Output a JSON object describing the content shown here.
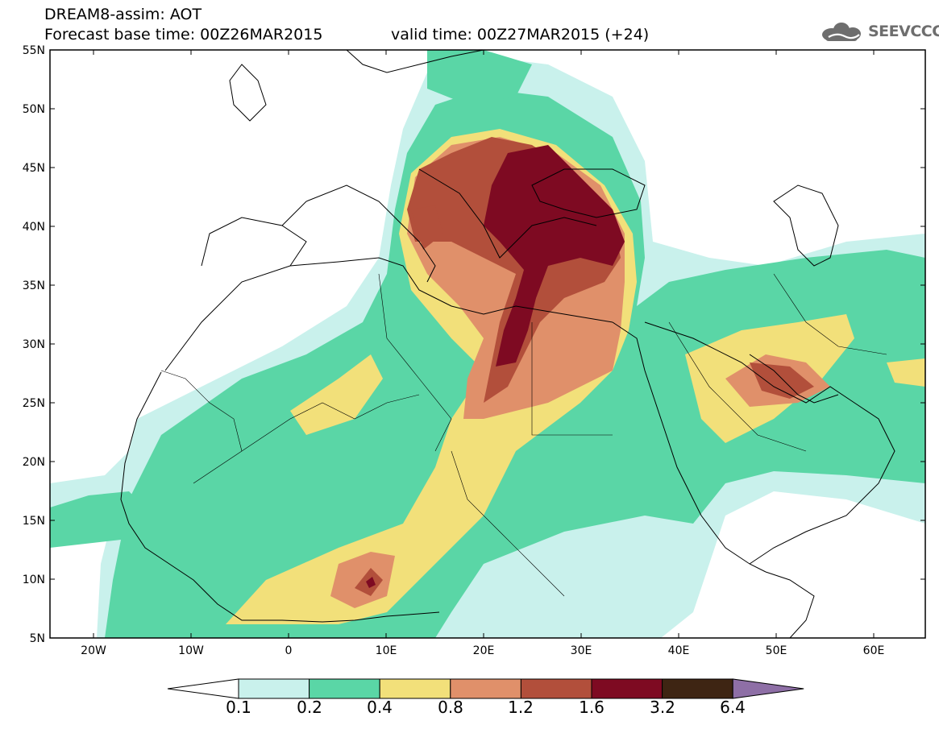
{
  "header": {
    "title": "DREAM8-assim: AOT",
    "base_time": "Forecast base time: 00Z26MAR2015",
    "valid_time": "valid time: 00Z27MAR2015 (+24)",
    "logo_text": "SEEVCCC"
  },
  "map": {
    "lat_labels": [
      "55N",
      "50N",
      "45N",
      "40N",
      "35N",
      "30N",
      "25N",
      "20N",
      "15N",
      "10N",
      "5N"
    ],
    "lon_labels": [
      "20W",
      "10W",
      "0",
      "10E",
      "20E",
      "30E",
      "40E",
      "50E",
      "60E"
    ],
    "lat_range": [
      5,
      55
    ],
    "lon_range": [
      -25,
      65
    ]
  },
  "colorbar": {
    "labels": [
      "0.1",
      "0.2",
      "0.4",
      "0.8",
      "1.2",
      "1.6",
      "3.2",
      "6.4"
    ],
    "colors": [
      "#c9f1ec",
      "#5ad6a6",
      "#f2e07a",
      "#e0906a",
      "#b24f3b",
      "#7e0a22",
      "#3e2513",
      "#8e6fa6"
    ],
    "under_color": "#ffffff"
  }
}
